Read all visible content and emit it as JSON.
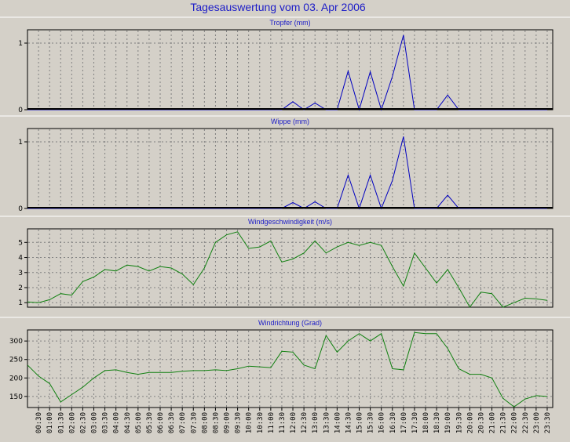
{
  "chart_data": {
    "title": "Tagesauswertung vom 03. Apr 2006",
    "x_ticks": [
      "00:30",
      "01:00",
      "01:30",
      "02:00",
      "02:30",
      "03:00",
      "03:30",
      "04:00",
      "04:30",
      "05:00",
      "05:30",
      "06:00",
      "06:30",
      "07:00",
      "07:30",
      "08:00",
      "08:30",
      "09:00",
      "09:30",
      "10:00",
      "10:30",
      "11:00",
      "11:30",
      "12:00",
      "12:30",
      "13:00",
      "13:30",
      "14:00",
      "14:30",
      "15:00",
      "15:30",
      "16:00",
      "16:30",
      "17:00",
      "17:30",
      "18:00",
      "18:30",
      "19:00",
      "19:30",
      "20:00",
      "20:30",
      "21:00",
      "21:30",
      "22:00",
      "22:30",
      "23:00",
      "23:30"
    ],
    "panels": [
      {
        "type": "line",
        "title": "Tropfer (mm)",
        "ylim": [
          0,
          1.2
        ],
        "yticks": [
          0,
          1
        ],
        "color": "#0000c0",
        "values": [
          0,
          0,
          0,
          0,
          0,
          0,
          0,
          0,
          0,
          0,
          0,
          0,
          0,
          0,
          0,
          0,
          0,
          0,
          0,
          0,
          0,
          0,
          0,
          0,
          0.12,
          0,
          0.1,
          0,
          0,
          0.58,
          0,
          0.57,
          0,
          0.5,
          1.12,
          0,
          0,
          0,
          0.22,
          0,
          0,
          0,
          0,
          0,
          0,
          0,
          0,
          0
        ]
      },
      {
        "type": "line",
        "title": "Wippe (mm)",
        "ylim": [
          0,
          1.2
        ],
        "yticks": [
          0,
          1
        ],
        "color": "#0000c0",
        "values": [
          0,
          0,
          0,
          0,
          0,
          0,
          0,
          0,
          0,
          0,
          0,
          0,
          0,
          0,
          0,
          0,
          0,
          0,
          0,
          0,
          0,
          0,
          0,
          0,
          0.09,
          0,
          0.1,
          0,
          0,
          0.5,
          0,
          0.5,
          0,
          0.42,
          1.08,
          0,
          0,
          0,
          0.2,
          0,
          0,
          0,
          0,
          0,
          0,
          0,
          0,
          0
        ]
      },
      {
        "type": "line",
        "title": "Windgeschwindigkeit (m/s)",
        "ylim": [
          0.7,
          5.9
        ],
        "yticks": [
          1,
          2,
          3,
          4,
          5
        ],
        "color": "#108010",
        "values": [
          1.05,
          1.0,
          1.2,
          1.6,
          1.5,
          2.4,
          2.7,
          3.2,
          3.1,
          3.5,
          3.4,
          3.1,
          3.4,
          3.3,
          2.9,
          2.2,
          3.3,
          5.0,
          5.5,
          5.7,
          4.6,
          4.7,
          5.1,
          3.7,
          3.9,
          4.3,
          5.1,
          4.3,
          4.7,
          5.0,
          4.8,
          5.0,
          4.8,
          3.4,
          2.1,
          4.3,
          3.3,
          2.3,
          3.2,
          2.0,
          0.7,
          1.7,
          1.6,
          0.7,
          1.0,
          1.3,
          1.25,
          1.15
        ]
      },
      {
        "type": "line",
        "title": "Windrichtung (Grad)",
        "ylim": [
          120,
          330
        ],
        "yticks": [
          150,
          200,
          250,
          300
        ],
        "color": "#108010",
        "values": [
          235,
          205,
          185,
          135,
          155,
          175,
          200,
          220,
          222,
          215,
          210,
          215,
          215,
          215,
          218,
          220,
          220,
          222,
          220,
          225,
          232,
          230,
          228,
          272,
          270,
          235,
          225,
          315,
          270,
          300,
          320,
          300,
          320,
          225,
          222,
          323,
          320,
          320,
          280,
          225,
          210,
          210,
          200,
          145,
          122,
          143,
          152,
          150
        ]
      }
    ]
  }
}
